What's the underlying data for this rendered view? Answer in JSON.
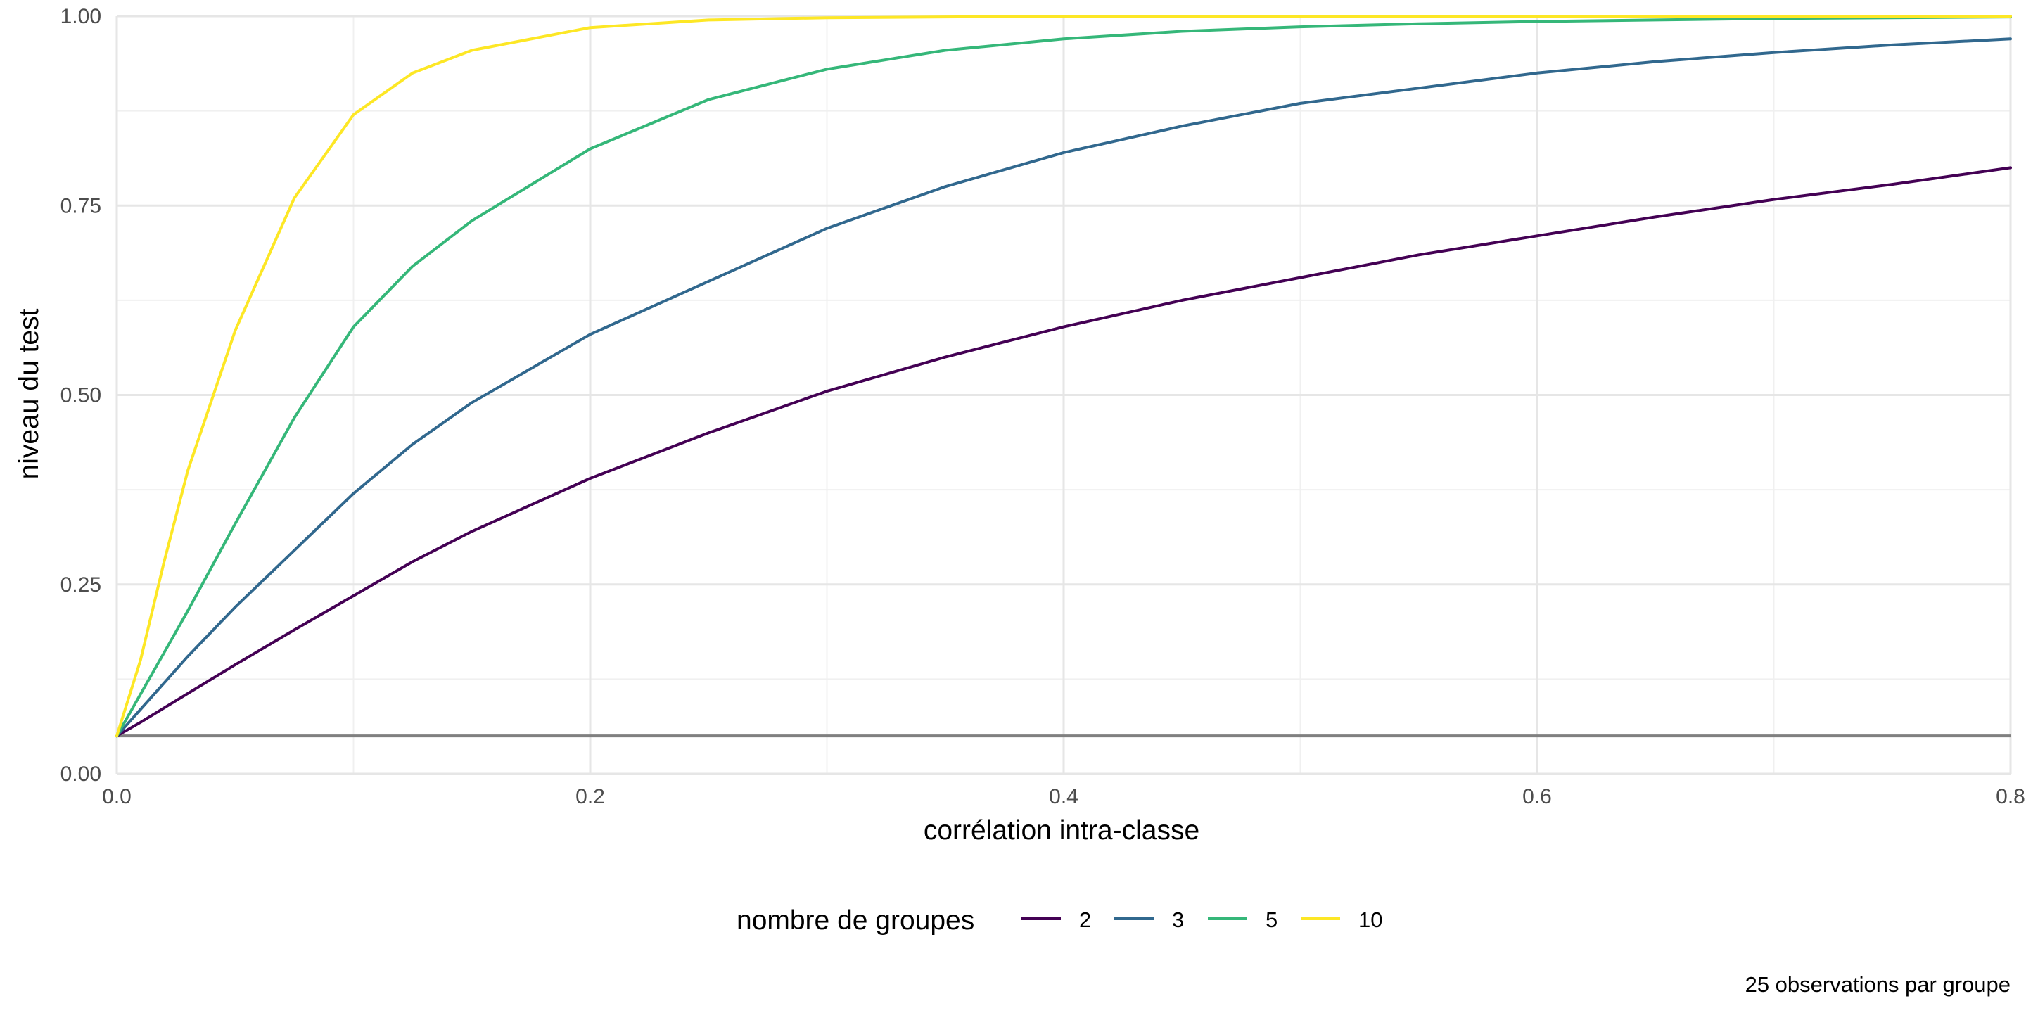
{
  "chart_data": {
    "type": "line",
    "title": "",
    "xlabel": "corrélation intra-classe",
    "ylabel": "niveau du test",
    "xlim": [
      0,
      0.8
    ],
    "ylim": [
      0,
      1
    ],
    "x_ticks": [
      0.0,
      0.2,
      0.4,
      0.6,
      0.8
    ],
    "x_tick_labels": [
      "0.0",
      "0.2",
      "0.4",
      "0.6",
      "0.8"
    ],
    "y_ticks": [
      0,
      0.25,
      0.5,
      0.75,
      1.0
    ],
    "y_tick_labels": [
      "0.00",
      "0.25",
      "0.50",
      "0.75",
      "1.00"
    ],
    "grid": true,
    "legend": {
      "title": "nombre de groupes",
      "position": "bottom"
    },
    "caption": "25 observations par groupe",
    "reference_line": {
      "y": 0.05,
      "color": "#808080"
    },
    "x": [
      0,
      0.01,
      0.02,
      0.03,
      0.05,
      0.075,
      0.1,
      0.125,
      0.15,
      0.2,
      0.25,
      0.3,
      0.35,
      0.4,
      0.45,
      0.5,
      0.55,
      0.6,
      0.65,
      0.7,
      0.75,
      0.8
    ],
    "series": [
      {
        "name": "2",
        "color": "#440154",
        "values": [
          0.05,
          0.068,
          0.087,
          0.106,
          0.144,
          0.19,
          0.235,
          0.28,
          0.32,
          0.39,
          0.45,
          0.505,
          0.55,
          0.59,
          0.625,
          0.655,
          0.685,
          0.71,
          0.735,
          0.758,
          0.778,
          0.8
        ]
      },
      {
        "name": "3",
        "color": "#31688e",
        "values": [
          0.05,
          0.085,
          0.12,
          0.155,
          0.22,
          0.295,
          0.37,
          0.435,
          0.49,
          0.58,
          0.65,
          0.72,
          0.775,
          0.82,
          0.855,
          0.885,
          0.905,
          0.925,
          0.94,
          0.952,
          0.962,
          0.97
        ]
      },
      {
        "name": "5",
        "color": "#35b779",
        "values": [
          0.05,
          0.105,
          0.16,
          0.215,
          0.33,
          0.47,
          0.59,
          0.67,
          0.73,
          0.825,
          0.89,
          0.93,
          0.955,
          0.97,
          0.98,
          0.986,
          0.99,
          0.993,
          0.995,
          0.997,
          0.998,
          0.999
        ]
      },
      {
        "name": "10",
        "color": "#fde725",
        "values": [
          0.05,
          0.15,
          0.28,
          0.4,
          0.585,
          0.76,
          0.87,
          0.925,
          0.955,
          0.985,
          0.995,
          0.998,
          0.999,
          1.0,
          1.0,
          1.0,
          1.0,
          1.0,
          1.0,
          1.0,
          1.0,
          1.0
        ]
      }
    ]
  }
}
